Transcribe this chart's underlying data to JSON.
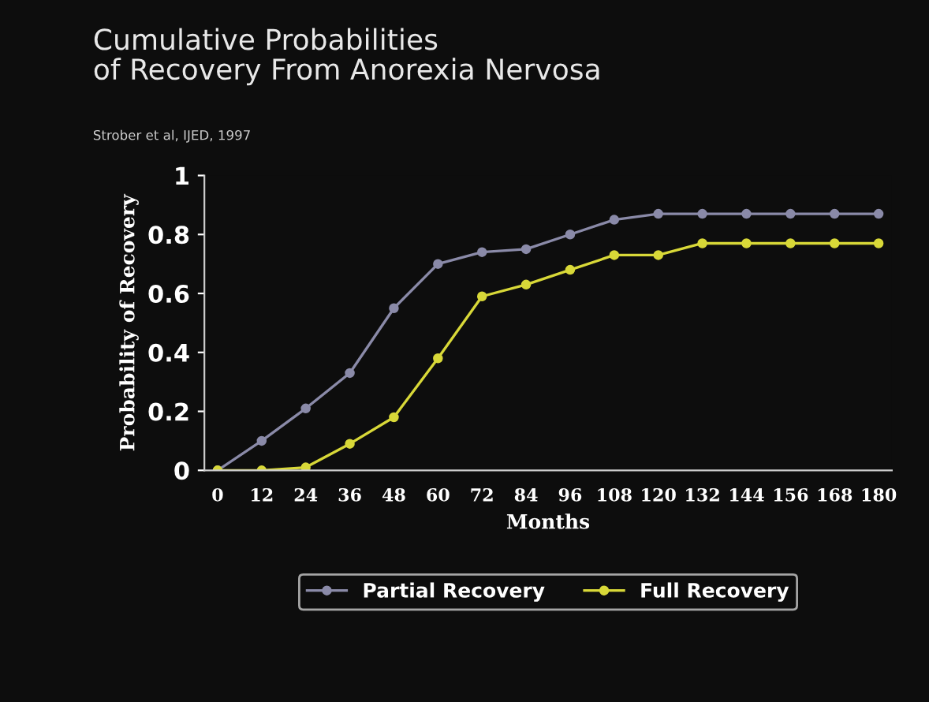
{
  "chart_data": {
    "type": "line",
    "title": "Cumulative Probabilities\nof Recovery From Anorexia Nervosa",
    "subtitle": "Strober et al, IJED, 1997",
    "xlabel": "Months",
    "ylabel": "Probability of Recovery",
    "categories": [
      "0",
      "12",
      "24",
      "36",
      "48",
      "60",
      "72",
      "84",
      "96",
      "108",
      "120",
      "132",
      "144",
      "156",
      "168",
      "180"
    ],
    "series": [
      {
        "name": "Partial Recovery",
        "color": "#8a8aa8",
        "values": [
          0,
          0.1,
          0.21,
          0.33,
          0.55,
          0.7,
          0.74,
          0.75,
          0.8,
          0.85,
          0.87,
          0.87,
          0.87,
          0.87,
          0.87,
          0.87
        ]
      },
      {
        "name": "Full Recovery",
        "color": "#d8d838",
        "values": [
          0,
          0,
          0.01,
          0.09,
          0.18,
          0.38,
          0.59,
          0.63,
          0.68,
          0.73,
          0.73,
          0.77,
          0.77,
          0.77,
          0.77,
          0.77
        ]
      }
    ],
    "ylim": [
      0,
      1
    ],
    "yticks": [
      0,
      0.2,
      0.4,
      0.6,
      0.8,
      1
    ],
    "marker": "circle",
    "line_style": "solid",
    "grid": false,
    "legend": "bottom"
  }
}
